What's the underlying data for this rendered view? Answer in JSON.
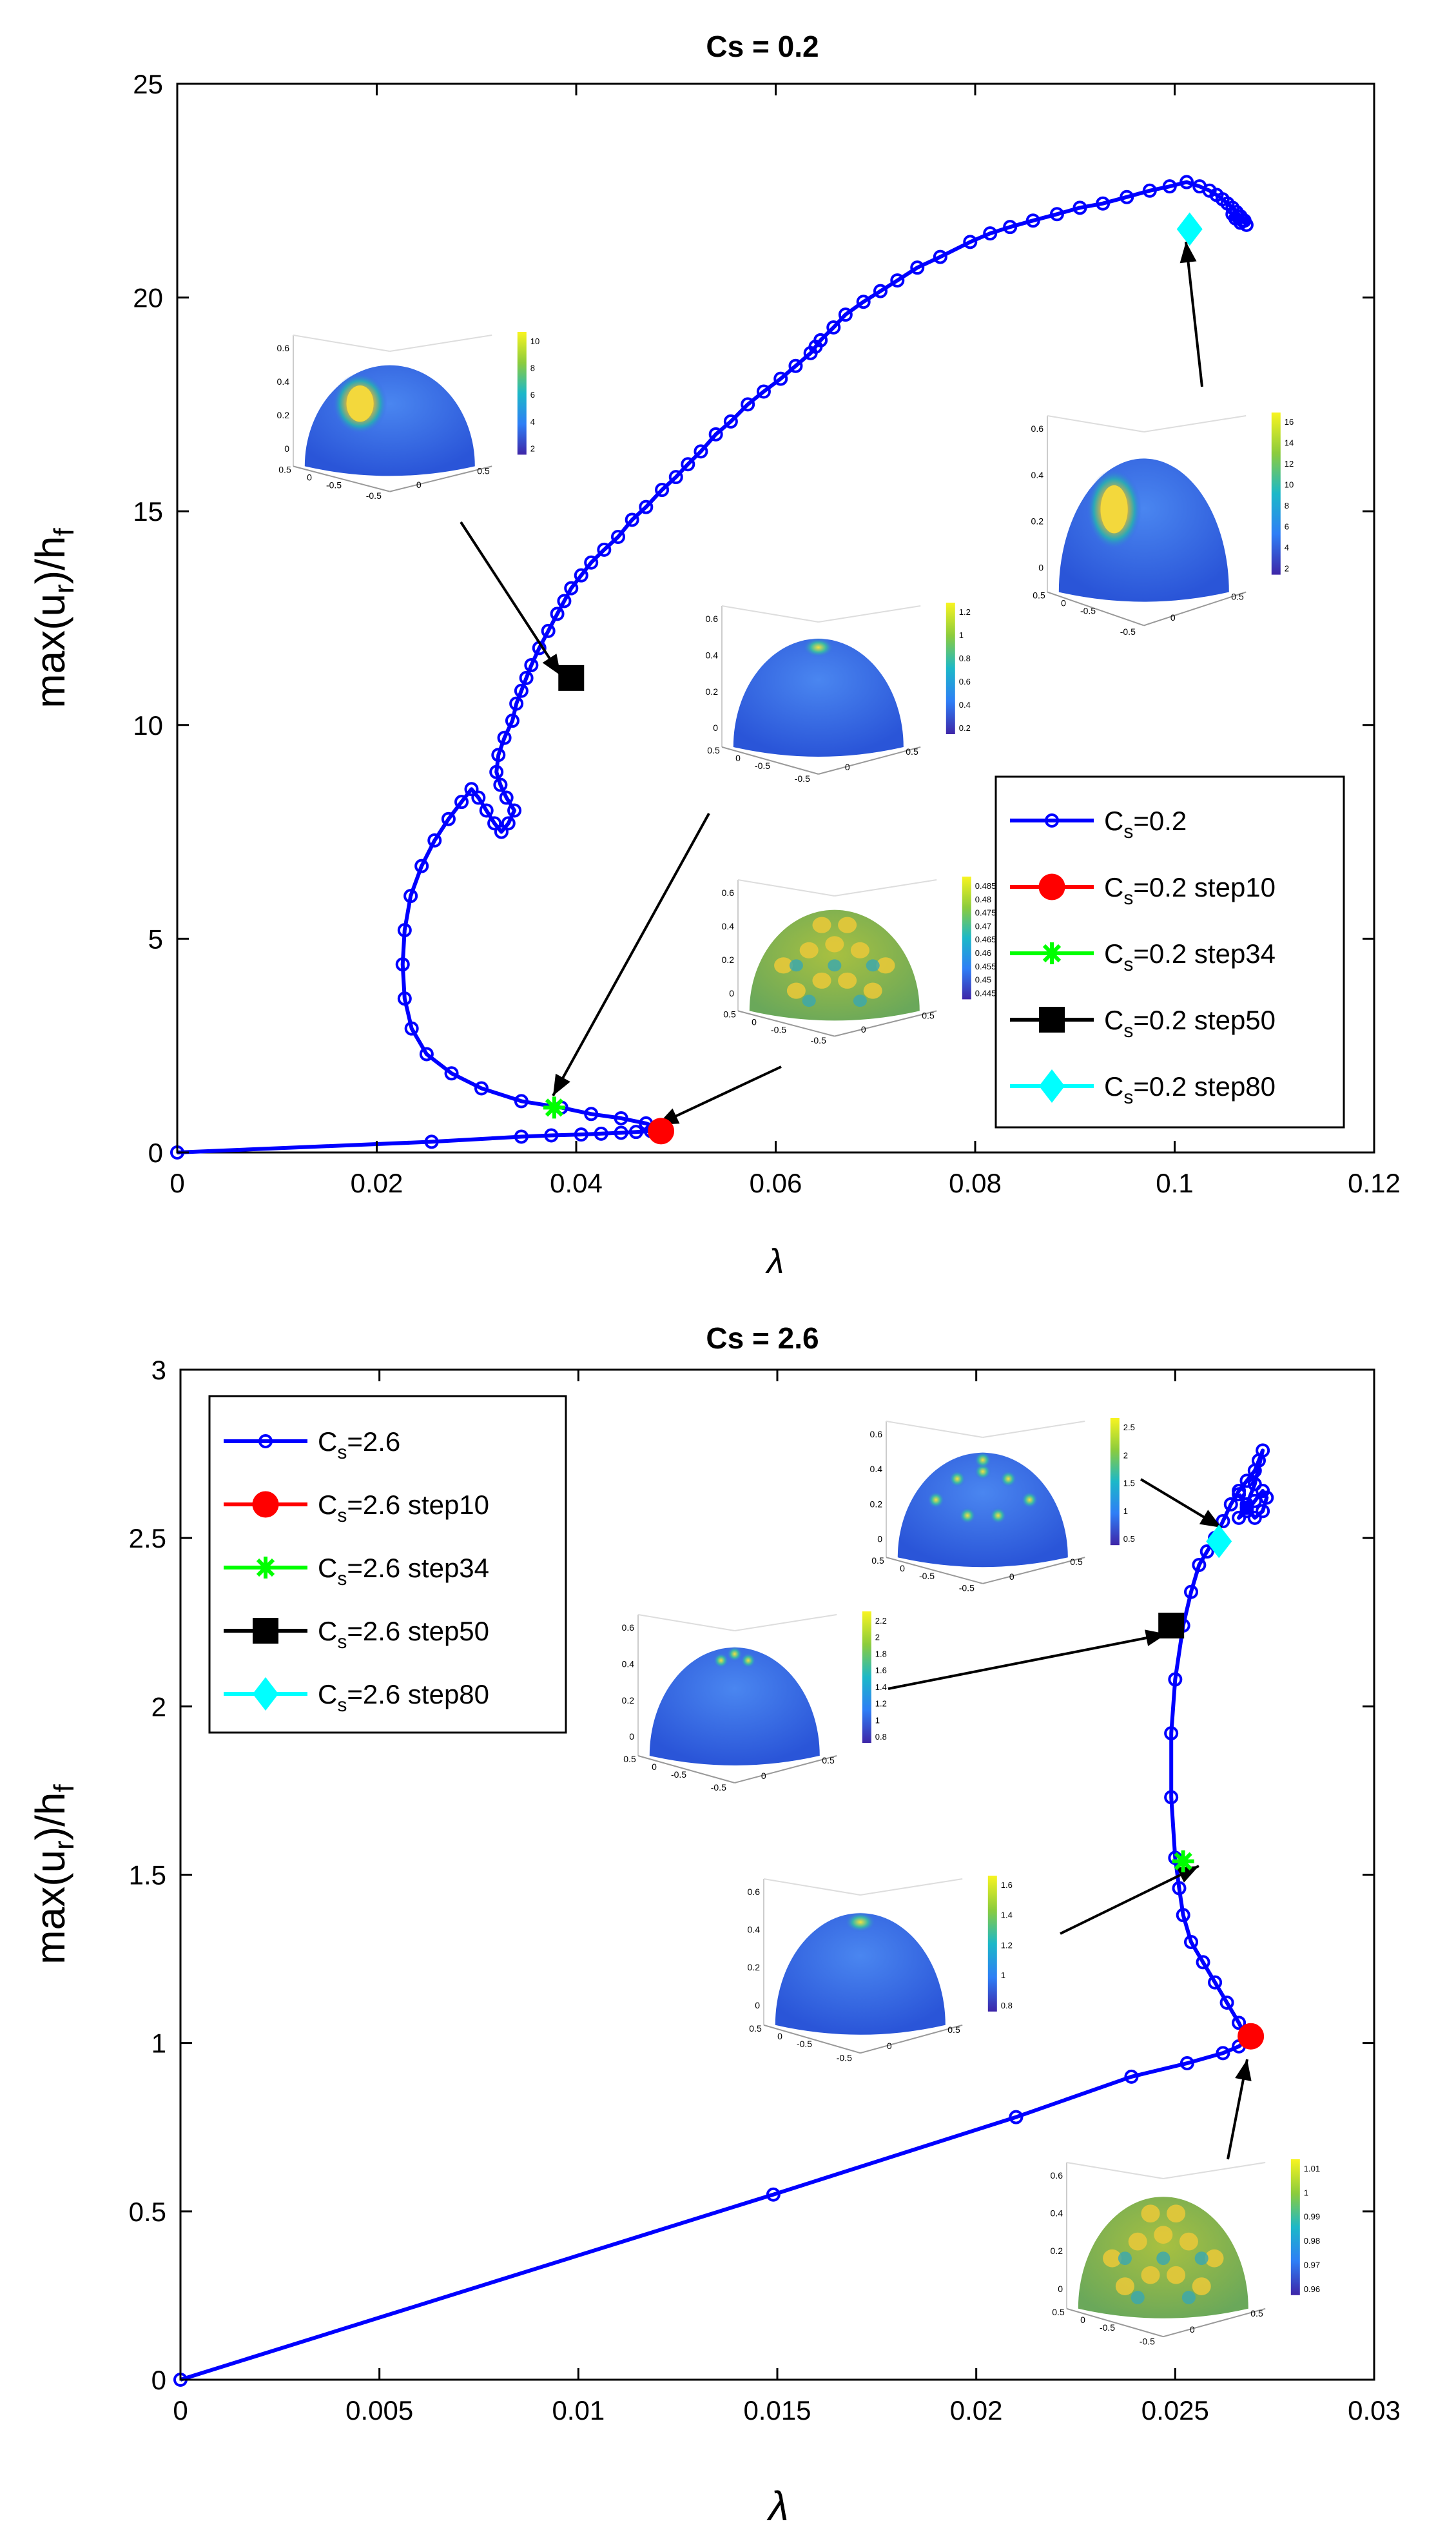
{
  "colors": {
    "series": "#0000ff",
    "step10": "#ff0000",
    "step34": "#00ff00",
    "step50": "#000000",
    "step80": "#00ffff",
    "axis": "#000000",
    "background": "#ffffff"
  },
  "chart_data": [
    {
      "type": "line",
      "title": "Cs = 0.2",
      "xlabel": "λ",
      "ylabel": "max(u_r)/h_f",
      "ylabel_parts": {
        "base": "max(u",
        "sub1": "r",
        "mid": ")/h",
        "sub2": "f"
      },
      "xlim": [
        0,
        0.12
      ],
      "ylim": [
        0,
        25
      ],
      "xticks": [
        0,
        0.02,
        0.04,
        0.06,
        0.08,
        0.1,
        0.12
      ],
      "xtick_labels": [
        "0",
        "0.02",
        "0.04",
        "0.06",
        "0.08",
        "0.1",
        "0.12"
      ],
      "yticks": [
        0,
        5,
        10,
        15,
        20,
        25
      ],
      "ytick_labels": [
        "0",
        "5",
        "10",
        "15",
        "20",
        "25"
      ],
      "legend_position": "lower-right",
      "series": [
        {
          "name": "Cs=0.2",
          "label_parts": {
            "base": "C",
            "sub": "s",
            "rest": "=0.2"
          },
          "x": [
            0,
            0.0255,
            0.0345,
            0.0375,
            0.0405,
            0.0425,
            0.0445,
            0.046,
            0.0475,
            0.0485,
            0.047,
            0.0445,
            0.0415,
            0.0385,
            0.0345,
            0.0305,
            0.0275,
            0.025,
            0.0235,
            0.0228,
            0.0226,
            0.0228,
            0.0234,
            0.0245,
            0.0258,
            0.0272,
            0.0285,
            0.0295,
            0.0302,
            0.031,
            0.0318,
            0.0325,
            0.0332,
            0.0338,
            0.033,
            0.0324,
            0.032,
            0.0322,
            0.0328,
            0.0336,
            0.034,
            0.0345,
            0.035,
            0.0355,
            0.0363,
            0.0372,
            0.0381,
            0.0388,
            0.0395,
            0.0405,
            0.0415,
            0.0428,
            0.0442,
            0.0456,
            0.047,
            0.0486,
            0.05,
            0.0512,
            0.0525,
            0.054,
            0.0555,
            0.0572,
            0.0588,
            0.0605,
            0.062,
            0.0635,
            0.064,
            0.0645,
            0.0658,
            0.067,
            0.0688,
            0.0705,
            0.0722,
            0.0742,
            0.0765,
            0.0795,
            0.0815,
            0.0835,
            0.0858,
            0.0882,
            0.0905,
            0.0928,
            0.0952,
            0.0975,
            0.0995,
            0.1012,
            0.1025,
            0.1035,
            0.1042,
            0.1048,
            0.1053,
            0.1058,
            0.1062,
            0.1066,
            0.107,
            0.1066,
            0.1061,
            0.1058,
            0.1063,
            0.1068,
            0.1072
          ],
          "y": [
            0,
            0.25,
            0.37,
            0.4,
            0.42,
            0.44,
            0.46,
            0.48,
            0.5,
            0.55,
            0.68,
            0.8,
            0.9,
            1.05,
            1.2,
            1.5,
            1.85,
            2.3,
            2.9,
            3.6,
            4.4,
            5.2,
            6.0,
            6.7,
            7.3,
            7.8,
            8.2,
            8.5,
            8.3,
            8.0,
            7.7,
            7.5,
            7.7,
            8.0,
            8.3,
            8.6,
            8.9,
            9.3,
            9.7,
            10.1,
            10.5,
            10.8,
            11.1,
            11.4,
            11.8,
            12.2,
            12.6,
            12.9,
            13.2,
            13.5,
            13.8,
            14.1,
            14.4,
            14.8,
            15.1,
            15.5,
            15.8,
            16.1,
            16.4,
            16.8,
            17.1,
            17.5,
            17.8,
            18.1,
            18.4,
            18.7,
            18.85,
            19.0,
            19.3,
            19.6,
            19.9,
            20.15,
            20.4,
            20.7,
            20.95,
            21.3,
            21.5,
            21.65,
            21.8,
            21.95,
            22.1,
            22.2,
            22.35,
            22.5,
            22.6,
            22.7,
            22.6,
            22.5,
            22.4,
            22.3,
            22.2,
            22.1,
            22.0,
            21.9,
            21.8,
            21.75,
            21.85,
            21.95,
            21.9,
            21.8,
            21.7
          ]
        }
      ],
      "markers": [
        {
          "name": "Cs=0.2 step10",
          "label_parts": {
            "base": "C",
            "sub": "s",
            "rest": "=0.2 step10"
          },
          "x": 0.0485,
          "y": 0.5,
          "shape": "circle",
          "color_key": "step10"
        },
        {
          "name": "Cs=0.2 step34",
          "label_parts": {
            "base": "C",
            "sub": "s",
            "rest": "=0.2 step34"
          },
          "x": 0.0378,
          "y": 1.05,
          "shape": "asterisk",
          "color_key": "step34"
        },
        {
          "name": "Cs=0.2 step50",
          "label_parts": {
            "base": "C",
            "sub": "s",
            "rest": "=0.2 step50"
          },
          "x": 0.0395,
          "y": 11.1,
          "shape": "square",
          "color_key": "step50"
        },
        {
          "name": "Cs=0.2 step80",
          "label_parts": {
            "base": "C",
            "sub": "s",
            "rest": "=0.2 step80"
          },
          "x": 0.1015,
          "y": 21.6,
          "shape": "diamond",
          "color_key": "step80"
        }
      ],
      "insets": [
        {
          "name": "step50 deformation",
          "colorbar_ticks": [
            "10",
            "8",
            "6",
            "4",
            "2"
          ],
          "z_ticks": [
            "0.6",
            "0.4",
            "0.2",
            "0"
          ],
          "base_ticks": [
            "0.5",
            "0",
            "-0.5",
            "-0.5",
            "0",
            "0.5"
          ],
          "pattern": "single-lobe"
        },
        {
          "name": "step80 deformation",
          "colorbar_ticks": [
            "16",
            "14",
            "12",
            "10",
            "8",
            "6",
            "4",
            "2"
          ],
          "z_ticks": [
            "0.6",
            "0.4",
            "0.2",
            "0"
          ],
          "base_ticks": [
            "0.5",
            "0",
            "-0.5",
            "-0.5",
            "0",
            "0.5"
          ],
          "pattern": "single-lobe"
        },
        {
          "name": "step34 deformation",
          "colorbar_ticks": [
            "1.2",
            "1",
            "0.8",
            "0.6",
            "0.4",
            "0.2"
          ],
          "z_ticks": [
            "0.6",
            "0.4",
            "0.2",
            "0"
          ],
          "base_ticks": [
            "0.5",
            "0",
            "-0.5",
            "-0.5",
            "0",
            "0.5"
          ],
          "pattern": "apex-spot"
        },
        {
          "name": "step10 deformation",
          "colorbar_ticks": [
            "0.485",
            "0.48",
            "0.475",
            "0.47",
            "0.465",
            "0.46",
            "0.455",
            "0.45",
            "0.445"
          ],
          "z_ticks": [
            "0.6",
            "0.4",
            "0.2",
            "0"
          ],
          "base_ticks": [
            "0.5",
            "0",
            "-0.5",
            "-0.5",
            "0",
            "0.5"
          ],
          "pattern": "checker"
        }
      ]
    },
    {
      "type": "line",
      "title": "Cs = 2.6",
      "xlabel": "λ",
      "ylabel": "max(u_r)/h_f",
      "ylabel_parts": {
        "base": "max(u",
        "sub1": "r",
        "mid": ")/h",
        "sub2": "f"
      },
      "xlim": [
        0,
        0.03
      ],
      "ylim": [
        0,
        3
      ],
      "xticks": [
        0,
        0.005,
        0.01,
        0.015,
        0.02,
        0.025,
        0.03
      ],
      "xtick_labels": [
        "0",
        "0.005",
        "0.01",
        "0.015",
        "0.02",
        "0.025",
        "0.03"
      ],
      "yticks": [
        0,
        0.5,
        1,
        1.5,
        2,
        2.5,
        3
      ],
      "ytick_labels": [
        "0",
        "0.5",
        "1",
        "1.5",
        "2",
        "2.5",
        "3"
      ],
      "legend_position": "top-left",
      "series": [
        {
          "name": "Cs=2.6",
          "label_parts": {
            "base": "C",
            "sub": "s",
            "rest": "=2.6"
          },
          "x": [
            0,
            0.0149,
            0.021,
            0.0239,
            0.0253,
            0.0262,
            0.0266,
            0.0268,
            0.0266,
            0.0263,
            0.026,
            0.0257,
            0.0254,
            0.0252,
            0.0251,
            0.025,
            0.0249,
            0.0249,
            0.025,
            0.0252,
            0.0254,
            0.0256,
            0.0258,
            0.026,
            0.0262,
            0.0264,
            0.0266,
            0.0268,
            0.027,
            0.0271,
            0.0272,
            0.027,
            0.0268,
            0.0266,
            0.0268,
            0.027,
            0.0272,
            0.0273,
            0.0272,
            0.027,
            0.0268,
            0.0266
          ],
          "y": [
            0,
            0.55,
            0.78,
            0.9,
            0.94,
            0.97,
            0.99,
            1.01,
            1.06,
            1.12,
            1.18,
            1.24,
            1.3,
            1.38,
            1.46,
            1.55,
            1.73,
            1.92,
            2.08,
            2.24,
            2.34,
            2.42,
            2.46,
            2.5,
            2.55,
            2.6,
            2.64,
            2.67,
            2.7,
            2.73,
            2.76,
            2.66,
            2.6,
            2.56,
            2.58,
            2.61,
            2.64,
            2.62,
            2.58,
            2.56,
            2.59,
            2.63
          ]
        }
      ],
      "markers": [
        {
          "name": "Cs=2.6 step10",
          "label_parts": {
            "base": "C",
            "sub": "s",
            "rest": "=2.6 step10"
          },
          "x": 0.0269,
          "y": 1.02,
          "shape": "circle",
          "color_key": "step10"
        },
        {
          "name": "Cs=2.6 step34",
          "label_parts": {
            "base": "C",
            "sub": "s",
            "rest": "=2.6 step34"
          },
          "x": 0.0252,
          "y": 1.54,
          "shape": "asterisk",
          "color_key": "step34"
        },
        {
          "name": "Cs=2.6 step50",
          "label_parts": {
            "base": "C",
            "sub": "s",
            "rest": "=2.6 step50"
          },
          "x": 0.0249,
          "y": 2.24,
          "shape": "square",
          "color_key": "step50"
        },
        {
          "name": "Cs=2.6 step80",
          "label_parts": {
            "base": "C",
            "sub": "s",
            "rest": "=2.6 step80"
          },
          "x": 0.0261,
          "y": 2.49,
          "shape": "diamond",
          "color_key": "step80"
        }
      ],
      "insets": [
        {
          "name": "step80 deformation",
          "colorbar_ticks": [
            "2.5",
            "2",
            "1.5",
            "1",
            "0.5"
          ],
          "z_ticks": [
            "0.6",
            "0.4",
            "0.2",
            "0"
          ],
          "base_ticks": [
            "0.5",
            "0",
            "-0.5",
            "-0.5",
            "0",
            "0.5"
          ],
          "pattern": "ring-spots"
        },
        {
          "name": "step50 deformation",
          "colorbar_ticks": [
            "2.2",
            "2",
            "1.8",
            "1.6",
            "1.4",
            "1.2",
            "1",
            "0.8"
          ],
          "z_ticks": [
            "0.6",
            "0.4",
            "0.2",
            "0"
          ],
          "base_ticks": [
            "0.5",
            "0",
            "-0.5",
            "-0.5",
            "0",
            "0.5"
          ],
          "pattern": "apex-trio"
        },
        {
          "name": "step34 deformation",
          "colorbar_ticks": [
            "1.6",
            "1.4",
            "1.2",
            "1",
            "0.8"
          ],
          "z_ticks": [
            "0.6",
            "0.4",
            "0.2",
            "0"
          ],
          "base_ticks": [
            "0.5",
            "0",
            "-0.5",
            "-0.5",
            "0",
            "0.5"
          ],
          "pattern": "apex-spot"
        },
        {
          "name": "step10 deformation",
          "colorbar_ticks": [
            "1.01",
            "1",
            "0.99",
            "0.98",
            "0.97",
            "0.96"
          ],
          "z_ticks": [
            "0.6",
            "0.4",
            "0.2",
            "0"
          ],
          "base_ticks": [
            "0.5",
            "0",
            "-0.5",
            "-0.5",
            "0",
            "0.5"
          ],
          "pattern": "checker"
        }
      ]
    }
  ]
}
